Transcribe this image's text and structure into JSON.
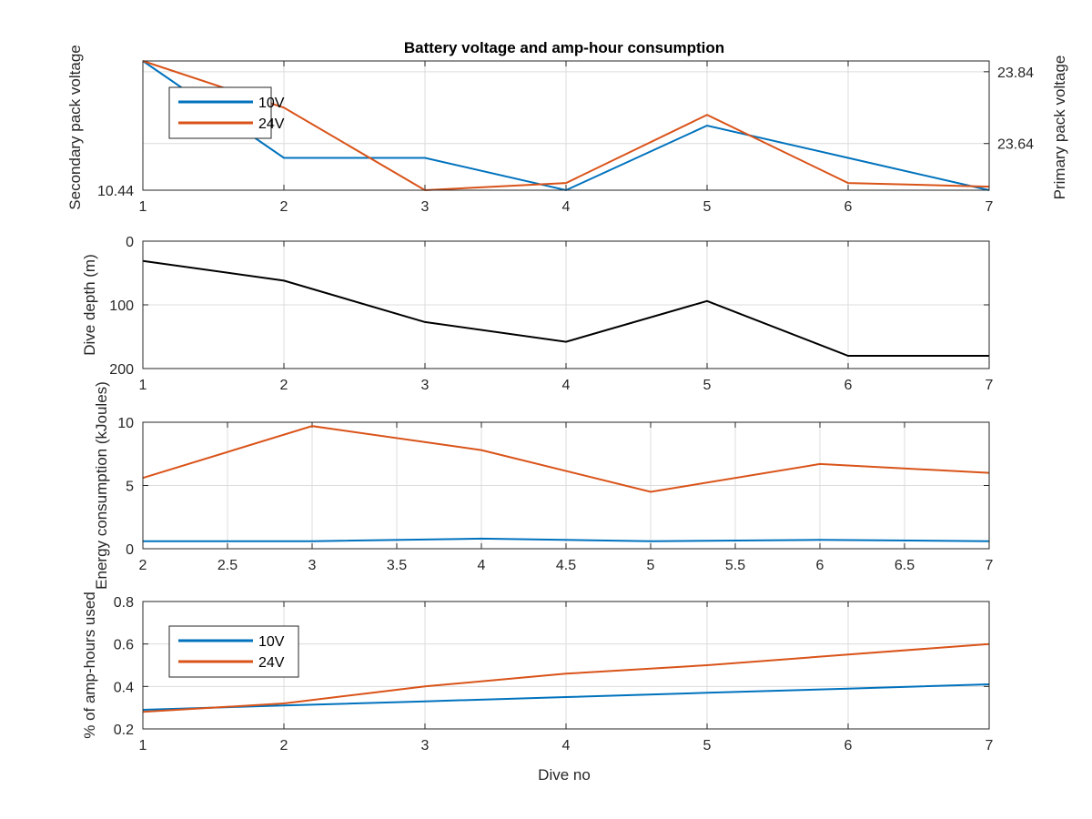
{
  "figure": {
    "title": "Battery voltage and amp-hour consumption",
    "xlabel": "Dive no"
  },
  "colors": {
    "blue": "#0072BD",
    "orange": "#D95319",
    "black": "#000000",
    "left_axis_blue": "#3a8fc9",
    "right_axis_orange": "#d97a3a"
  },
  "chart_data": [
    {
      "type": "line",
      "title": "Battery voltage and amp-hour consumption",
      "xlabel": "",
      "ylabel": "Secondary pack voltage",
      "ylabel_right": "Primary pack voltage",
      "xlim": [
        1,
        7
      ],
      "xticks": [
        "1",
        "2",
        "3",
        "4",
        "5",
        "6",
        "7"
      ],
      "left_ylim": [
        10.44,
        10.52
      ],
      "left_yticks": [
        {
          "value": 10.44,
          "label": "10.44"
        }
      ],
      "right_ylim": [
        23.51,
        23.87
      ],
      "right_yticks": [
        {
          "value": 23.64,
          "label": "23.64"
        },
        {
          "value": 23.84,
          "label": "23.84"
        }
      ],
      "legend": {
        "position": "top-left",
        "entries": [
          "10V",
          "24V"
        ]
      },
      "grid": true,
      "series": [
        {
          "name": "10V",
          "axis": "left",
          "color": "#0072BD",
          "x": [
            1,
            2,
            3,
            4,
            5,
            6,
            7
          ],
          "y": [
            10.52,
            10.46,
            10.46,
            10.44,
            10.48,
            10.46,
            10.44
          ]
        },
        {
          "name": "24V",
          "axis": "right",
          "color": "#D95319",
          "x": [
            1,
            2,
            3,
            4,
            5,
            6,
            7
          ],
          "y": [
            23.87,
            23.74,
            23.51,
            23.53,
            23.72,
            23.53,
            23.52
          ]
        }
      ]
    },
    {
      "type": "line",
      "ylabel": "Dive depth (m)",
      "xlim": [
        1,
        7
      ],
      "xticks": [
        "1",
        "2",
        "3",
        "4",
        "5",
        "6",
        "7"
      ],
      "ylim": [
        0,
        200
      ],
      "y_reversed": true,
      "yticks": [
        {
          "value": 0,
          "label": "0"
        },
        {
          "value": 100,
          "label": "100"
        },
        {
          "value": 200,
          "label": "200"
        }
      ],
      "grid": true,
      "series": [
        {
          "color": "#000000",
          "x": [
            1,
            2,
            3,
            4,
            5,
            6,
            7
          ],
          "y": [
            31,
            62,
            127,
            158,
            94,
            180,
            180
          ]
        }
      ]
    },
    {
      "type": "line",
      "ylabel": "Energy consumption (kJoules)",
      "xlim": [
        2,
        7
      ],
      "xticks": [
        "2",
        "2.5",
        "3",
        "3.5",
        "4",
        "4.5",
        "5",
        "5.5",
        "6",
        "6.5",
        "7"
      ],
      "ylim": [
        0,
        10
      ],
      "yticks": [
        {
          "value": 0,
          "label": "0"
        },
        {
          "value": 5,
          "label": "5"
        },
        {
          "value": 10,
          "label": "10"
        }
      ],
      "grid": true,
      "series": [
        {
          "color": "#0072BD",
          "x": [
            2,
            3,
            4,
            5,
            6,
            7
          ],
          "y": [
            0.6,
            0.6,
            0.8,
            0.6,
            0.7,
            0.6
          ]
        },
        {
          "color": "#D95319",
          "x": [
            2,
            3,
            4,
            5,
            6,
            7
          ],
          "y": [
            5.6,
            9.7,
            7.8,
            4.5,
            6.7,
            6.0
          ]
        }
      ]
    },
    {
      "type": "line",
      "ylabel": "% of amp-hours used",
      "xlabel": "Dive no",
      "xlim": [
        1,
        7
      ],
      "xticks": [
        "1",
        "2",
        "3",
        "4",
        "5",
        "6",
        "7"
      ],
      "ylim": [
        0.2,
        0.8
      ],
      "yticks": [
        {
          "value": 0.2,
          "label": "0.2"
        },
        {
          "value": 0.4,
          "label": "0.4"
        },
        {
          "value": 0.6,
          "label": "0.6"
        },
        {
          "value": 0.8,
          "label": "0.8"
        }
      ],
      "legend": {
        "position": "upper-left",
        "entries": [
          "10V",
          "24V"
        ]
      },
      "grid": true,
      "series": [
        {
          "name": "10V",
          "color": "#0072BD",
          "x": [
            1,
            2,
            3,
            4,
            5,
            6,
            7
          ],
          "y": [
            0.29,
            0.31,
            0.33,
            0.35,
            0.37,
            0.39,
            0.41
          ]
        },
        {
          "name": "24V",
          "color": "#D95319",
          "x": [
            1,
            2,
            3,
            4,
            5,
            6,
            7
          ],
          "y": [
            0.28,
            0.32,
            0.4,
            0.46,
            0.5,
            0.55,
            0.6
          ]
        }
      ]
    }
  ]
}
